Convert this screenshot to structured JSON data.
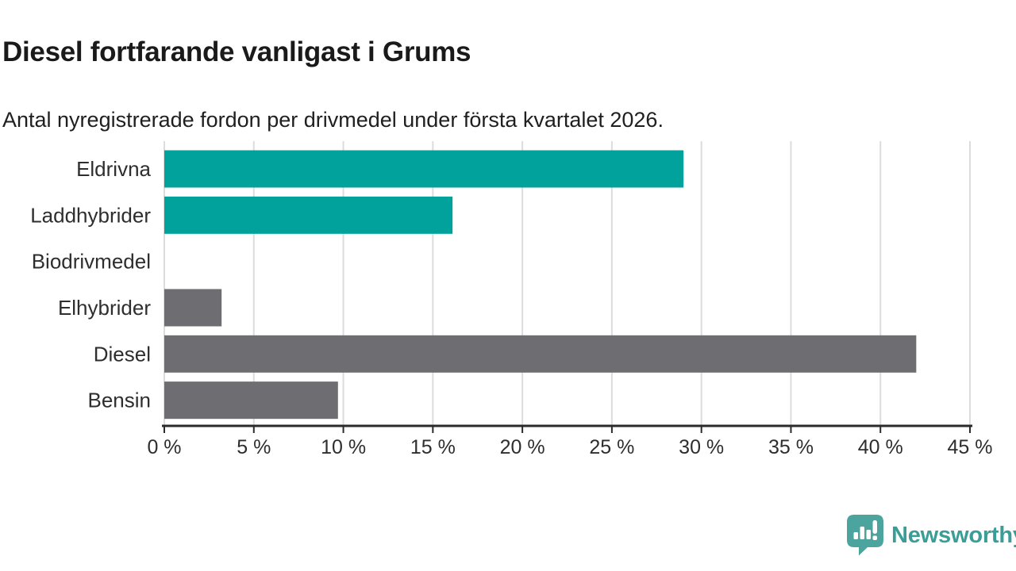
{
  "header": {
    "title": "Diesel fortfarande vanligast i Grums",
    "subtitle": "Antal nyregistrerade fordon per drivmedel under första kvartalet 2026."
  },
  "chart_data": {
    "type": "bar",
    "orientation": "horizontal",
    "title": "Diesel fortfarande vanligast i Grums",
    "subtitle": "Antal nyregistrerade fordon per drivmedel under första kvartalet 2026.",
    "categories": [
      "Eldrivna",
      "Laddhybrider",
      "Biodrivmedel",
      "Elhybrider",
      "Diesel",
      "Bensin"
    ],
    "values": [
      29,
      16.1,
      0,
      3.2,
      42,
      9.7
    ],
    "value_unit": "%",
    "bar_colors": [
      "#00a29b",
      "#00a29b",
      "#00a29b",
      "#6d6d72",
      "#6d6d72",
      "#6d6d72"
    ],
    "xlim": [
      0,
      45
    ],
    "x_ticks": [
      0,
      5,
      10,
      15,
      20,
      25,
      30,
      35,
      40,
      45
    ],
    "x_tick_labels": [
      "0 %",
      "5 %",
      "10 %",
      "15 %",
      "20 %",
      "25 %",
      "30 %",
      "35 %",
      "40 %",
      "45 %"
    ],
    "grid": true,
    "legend_position": "none"
  },
  "footer": {
    "brand": "Newsworthy"
  },
  "colors": {
    "bar_teal": "#00a29b",
    "bar_gray": "#6d6d72",
    "grid_line": "#dcdcdc",
    "axis_line": "#2b2b2b",
    "label_text": "#2e2e2e",
    "title_text": "#1a1a1a",
    "brand_text": "#3a9d96",
    "brand_icon": "#4ba49d"
  }
}
